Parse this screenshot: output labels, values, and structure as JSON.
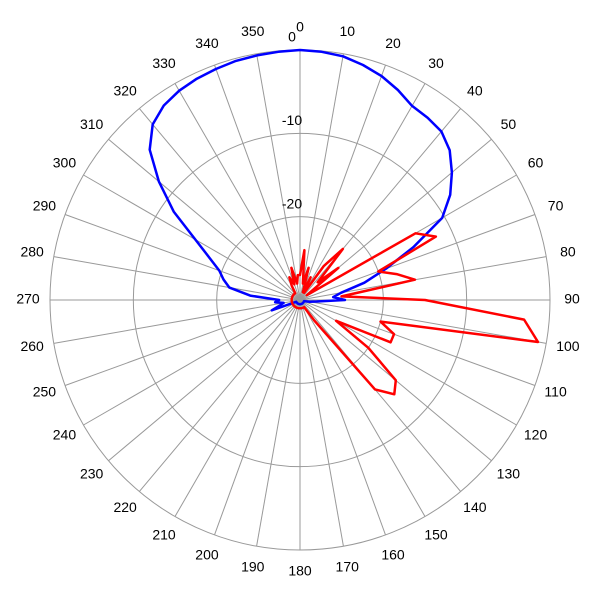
{
  "chart_data": {
    "type": "polar",
    "x": [
      0,
      5,
      10,
      15,
      20,
      25,
      30,
      35,
      40,
      45,
      50,
      55,
      60,
      65,
      70,
      75,
      80,
      85,
      90,
      95,
      100,
      105,
      110,
      115,
      120,
      125,
      130,
      135,
      140,
      145,
      150,
      155,
      160,
      165,
      170,
      175,
      180,
      185,
      190,
      195,
      200,
      205,
      210,
      215,
      220,
      225,
      230,
      235,
      240,
      245,
      250,
      255,
      260,
      265,
      270,
      275,
      280,
      285,
      290,
      295,
      300,
      305,
      310,
      315,
      320,
      325,
      330,
      335,
      340,
      345,
      350,
      355
    ],
    "series": [
      {
        "color": "#0000ff",
        "values": [
          0,
          -0.1,
          -0.3,
          -0.8,
          -1.4,
          -2.2,
          -3.1,
          -3.3,
          -3.6,
          -4.6,
          -6.2,
          -8,
          -10.3,
          -15,
          -19,
          -22,
          -25,
          -26,
          -24.6,
          -28,
          -28.8,
          -29.5,
          -29.5,
          -29.5,
          -29.5,
          -29.5,
          -29.5,
          -29.5,
          -29.5,
          -29.5,
          -29.5,
          -29.5,
          -29.5,
          -29.5,
          -29.5,
          -29.5,
          -29.5,
          -29.5,
          -29.5,
          -29.5,
          -29.5,
          -29.5,
          -29.5,
          -29.5,
          -29.5,
          -29.5,
          -29.5,
          -29.5,
          -29.5,
          -29.5,
          -26.4,
          -27.5,
          -28,
          -27,
          -27.5,
          -24,
          -21.4,
          -20.5,
          -19.7,
          -18,
          -15.5,
          -11.5,
          -7.9,
          -4.5,
          -2.5,
          -1.5,
          -1,
          -0.7,
          -0.5,
          -0.3,
          -0.2,
          -0.1
        ]
      },
      {
        "color": "#ff0000",
        "values": [
          -27,
          -24,
          -28,
          -26,
          -29,
          -27,
          -29,
          -25,
          -22,
          -27,
          -24,
          -29,
          -14,
          -12,
          -20,
          -18,
          -16,
          -25,
          -15,
          -3,
          -1,
          -20,
          -18,
          -18,
          -25,
          -20,
          -15,
          -14,
          -16,
          -27,
          -29,
          -29,
          -29,
          -29,
          -29,
          -29,
          -29,
          -29,
          -29,
          -29,
          -29,
          -29,
          -29,
          -29,
          -29,
          -29,
          -29,
          -29,
          -29,
          -29,
          -29,
          -29,
          -29,
          -29,
          -29,
          -29,
          -29,
          -29,
          -29,
          -29,
          -29,
          -29,
          -29,
          -29,
          -29,
          -29,
          -28,
          -27,
          -28,
          -26,
          -28,
          -27
        ]
      }
    ],
    "rlim": [
      -30,
      0
    ],
    "rticks": [
      -20,
      -10,
      0
    ],
    "angle_ticks": [
      0,
      10,
      20,
      30,
      40,
      50,
      60,
      70,
      80,
      90,
      100,
      110,
      120,
      130,
      140,
      150,
      160,
      170,
      180,
      190,
      200,
      210,
      220,
      230,
      240,
      250,
      260,
      270,
      280,
      290,
      300,
      310,
      320,
      330,
      340,
      350
    ]
  }
}
